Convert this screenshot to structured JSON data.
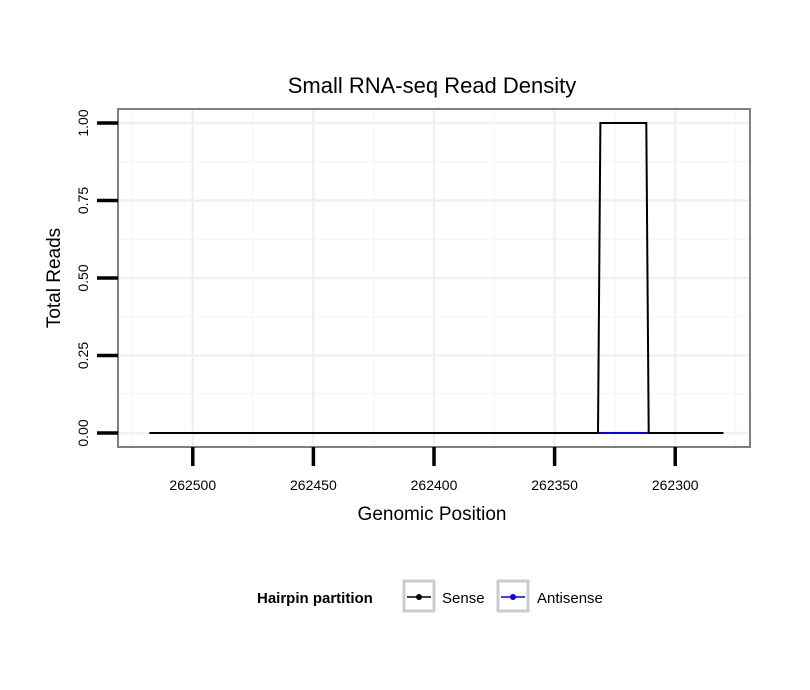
{
  "chart_data": {
    "type": "line",
    "title": "Small RNA-seq Read Density",
    "xlabel": "Genomic Position",
    "ylabel": "Total Reads",
    "x_reversed": true,
    "xlim": [
      262531,
      262269
    ],
    "ylim": [
      -0.045,
      1.045
    ],
    "x_ticks": [
      262500,
      262450,
      262400,
      262350,
      262300
    ],
    "x_tick_labels": [
      "262500",
      "262450",
      "262400",
      "262350",
      "262300"
    ],
    "y_ticks": [
      0,
      0.25,
      0.5,
      0.75,
      1
    ],
    "y_tick_labels": [
      "0.00",
      "0.25",
      "0.50",
      "0.75",
      "1.00"
    ],
    "grid": true,
    "legend": {
      "title": "Hairpin partition",
      "placement": "bottom",
      "entries": [
        {
          "name": "Sense",
          "color": "#000000"
        },
        {
          "name": "Antisense",
          "color": "#0000ff"
        }
      ]
    },
    "series": [
      {
        "name": "Sense",
        "color": "#000000",
        "x": [
          262518,
          262332,
          262331,
          262312,
          262311,
          262280
        ],
        "y": [
          0,
          0,
          1,
          1,
          0,
          0
        ]
      },
      {
        "name": "Antisense",
        "color": "#0000ff",
        "x": [
          262332,
          262311
        ],
        "y": [
          0,
          0
        ]
      }
    ]
  }
}
